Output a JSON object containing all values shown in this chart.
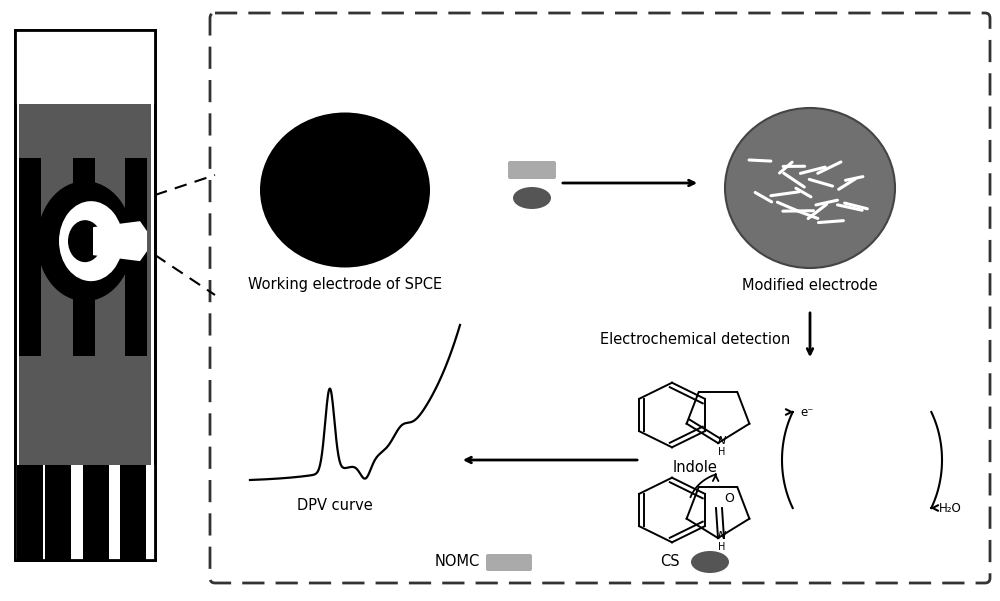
{
  "bg_color": "#ffffff",
  "fig_w": 10.0,
  "fig_h": 6.01,
  "dpi": 100,
  "spce_label": "Working electrode of SPCE",
  "modified_label": "Modified electrode",
  "electrochemical_label": "Electrochemical detection",
  "dpv_label": "DPV curve",
  "nomc_label": "NOMC",
  "cs_label": "CS",
  "indole_label": "Indole",
  "h2o_label": "H₂O",
  "e_label": "e⁻"
}
